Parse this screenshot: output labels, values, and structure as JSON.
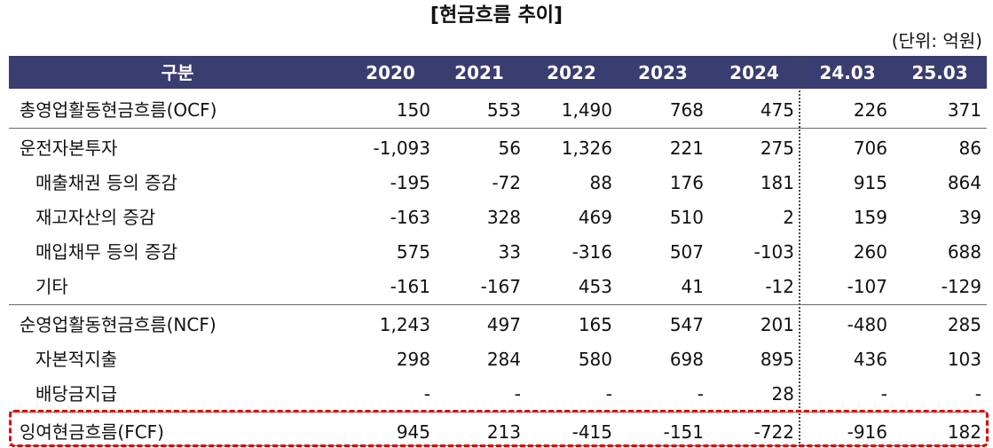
{
  "title": "[현금흐름 추이]",
  "unit": "(단위: 억원)",
  "table": {
    "header": [
      "구분",
      "2020",
      "2021",
      "2022",
      "2023",
      "2024",
      "24.03",
      "25.03"
    ],
    "groups": [
      {
        "rows": [
          [
            "총영업활동현금흐름(OCF)",
            "150",
            "553",
            "1,490",
            "768",
            "475",
            "226",
            "371"
          ]
        ]
      },
      {
        "rows": [
          [
            "운전자본투자",
            "-1,093",
            "56",
            "1,326",
            "221",
            "275",
            "706",
            "86"
          ],
          [
            "매출채권 등의 증감",
            "-195",
            "-72",
            "88",
            "176",
            "181",
            "915",
            "864"
          ],
          [
            "재고자산의 증감",
            "-163",
            "328",
            "469",
            "510",
            "2",
            "159",
            "39"
          ],
          [
            "매입채무 등의 증감",
            "575",
            "33",
            "-316",
            "507",
            "-103",
            "260",
            "688"
          ],
          [
            "기타",
            "-161",
            "-167",
            "453",
            "41",
            "-12",
            "-107",
            "-129"
          ]
        ]
      },
      {
        "rows": [
          [
            "순영업활동현금흐름(NCF)",
            "1,243",
            "497",
            "165",
            "547",
            "201",
            "-480",
            "285"
          ],
          [
            "자본적지출",
            "298",
            "284",
            "580",
            "698",
            "895",
            "436",
            "103"
          ],
          [
            "배당금지급",
            "-",
            "-",
            "-",
            "-",
            "28",
            "-",
            "-"
          ]
        ]
      },
      {
        "rows": [
          [
            "잉여현금흐름(FCF)",
            "945",
            "213",
            "-415",
            "-151",
            "-722",
            "-916",
            "182"
          ]
        ]
      }
    ]
  }
}
